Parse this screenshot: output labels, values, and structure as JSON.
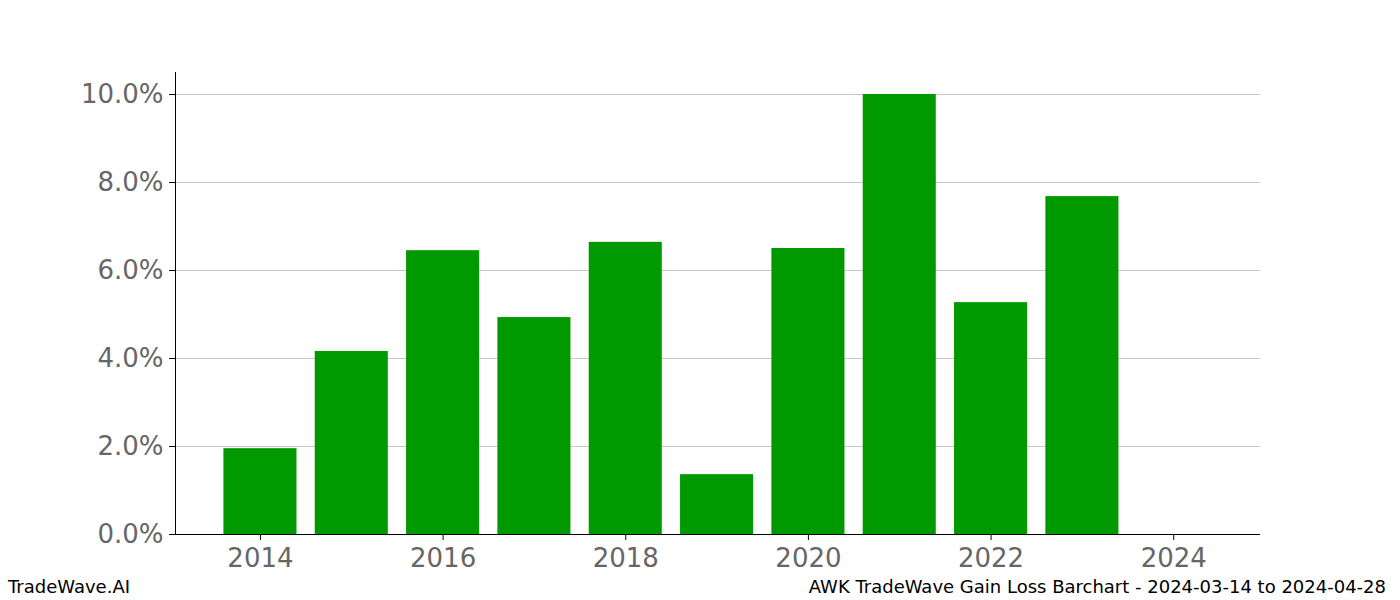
{
  "chart_data": {
    "type": "bar",
    "title": "AWK TradeWave Gain Loss Barchart - 2024-03-14 to 2024-04-28",
    "annotations": [
      "TradeWave.AI"
    ],
    "x": [
      2014,
      2015,
      2016,
      2017,
      2018,
      2019,
      2020,
      2021,
      2022,
      2023
    ],
    "values": [
      1.95,
      4.16,
      6.45,
      4.93,
      6.64,
      1.36,
      6.5,
      10.0,
      5.27,
      7.68
    ],
    "color": "#009900",
    "xlim": [
      2013.07,
      2024.95
    ],
    "xticks": [
      2014,
      2016,
      2018,
      2020,
      2022,
      2024
    ],
    "ylim": [
      0,
      10.5
    ],
    "yticks": [
      {
        "value": 0,
        "label": "0.0%"
      },
      {
        "value": 2,
        "label": "2.0%"
      },
      {
        "value": 4,
        "label": "4.0%"
      },
      {
        "value": 6,
        "label": "6.0%"
      },
      {
        "value": 8,
        "label": "8.0%"
      },
      {
        "value": 10,
        "label": "10.0%"
      }
    ],
    "grid": true
  }
}
